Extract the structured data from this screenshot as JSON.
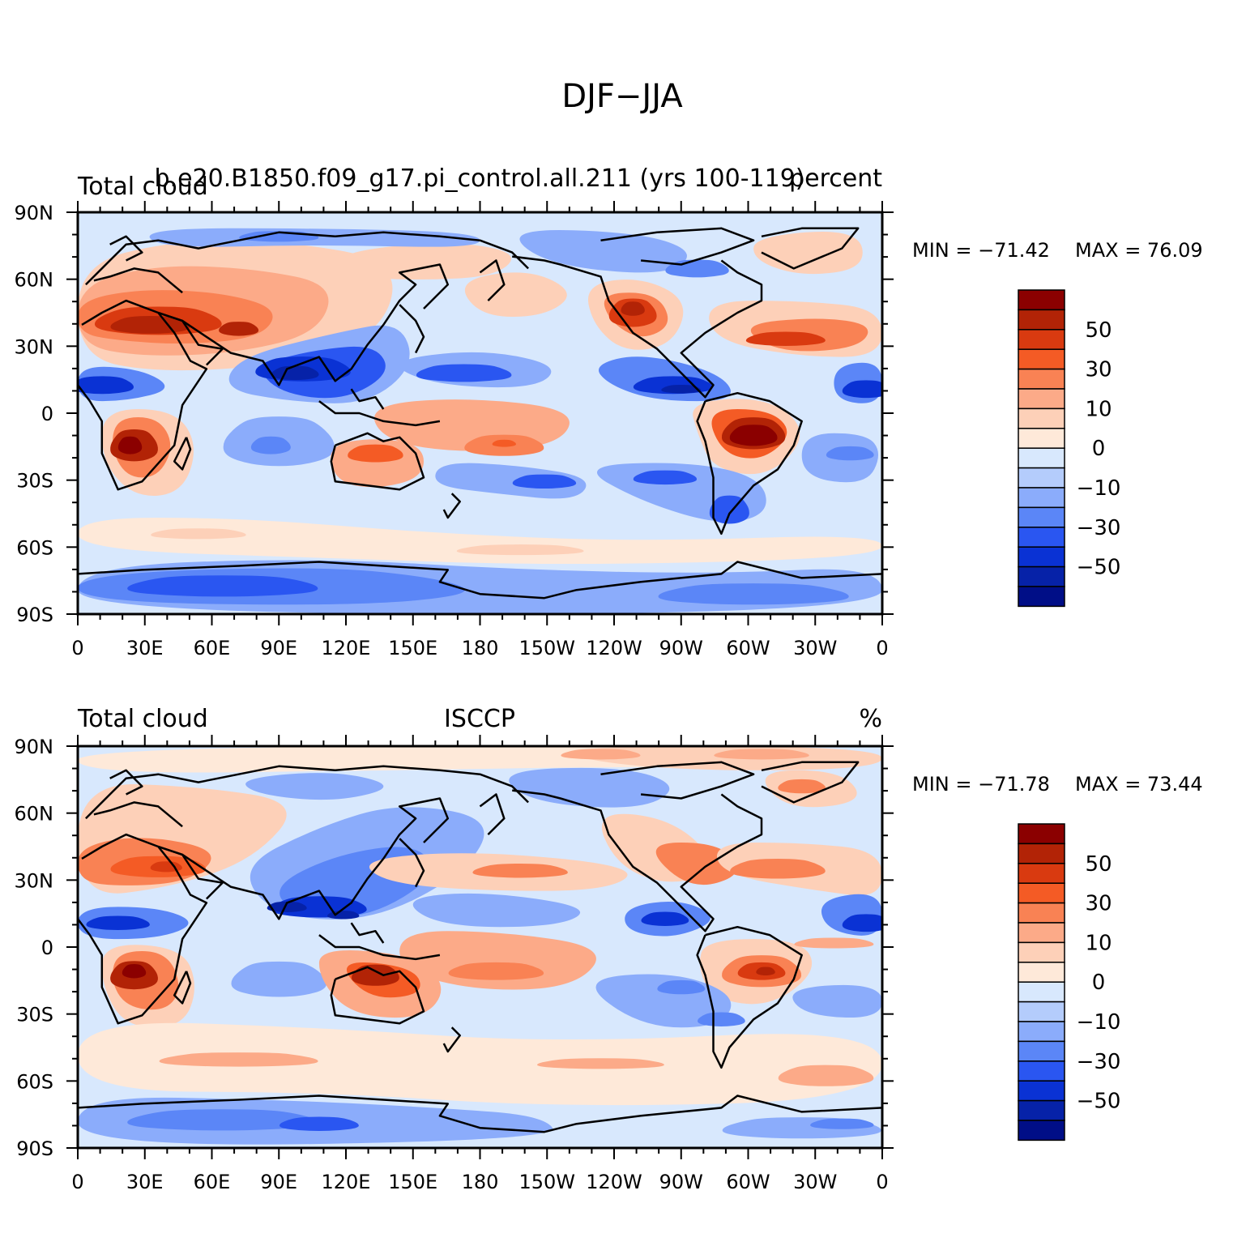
{
  "main_title": "DJF−JJA",
  "panels": [
    {
      "left_title": "Total cloud",
      "center_title": "b.e20.B1850.f09_g17.pi_control.all.211 (yrs 100-119)",
      "right_title": "percent",
      "min_label": "MIN = −71.42",
      "max_label": "MAX =  76.09",
      "min": -71.42,
      "max": 76.09
    },
    {
      "left_title": "Total cloud",
      "center_title": "ISCCP",
      "right_title": "%",
      "min_label": "MIN = −71.78",
      "max_label": "MAX =  73.44",
      "min": -71.78,
      "max": 73.44
    }
  ],
  "x_ticks": [
    "0",
    "30E",
    "60E",
    "90E",
    "120E",
    "150E",
    "180",
    "150W",
    "120W",
    "90W",
    "60W",
    "30W",
    "0"
  ],
  "y_ticks": [
    "90N",
    "60N",
    "30N",
    "0",
    "30S",
    "60S",
    "90S"
  ],
  "colorbar": {
    "labels": [
      "50",
      "30",
      "10",
      "0",
      "−10",
      "−30",
      "−50"
    ],
    "colors": [
      "#8b0000",
      "#b22306",
      "#d93a10",
      "#f45b25",
      "#f98254",
      "#fcaa88",
      "#fdd0b8",
      "#fee9d9",
      "#d8e8fd",
      "#b4ccfc",
      "#8bacfb",
      "#5b86f7",
      "#2a56f1",
      "#0a32d4",
      "#0622a8",
      "#000e87"
    ]
  }
}
